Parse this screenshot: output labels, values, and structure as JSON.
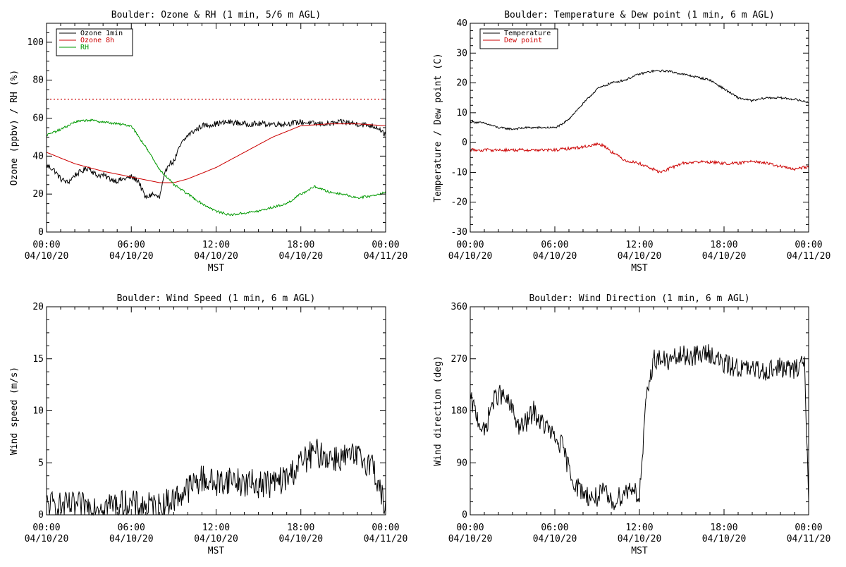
{
  "chart_data": [
    {
      "type": "line",
      "title": "Boulder: Ozone & RH (1 min, 5/6 m AGL)",
      "xlabel": "MST",
      "ylabel": "Ozone (ppbv) / RH (%)",
      "xlim": [
        0,
        24
      ],
      "ylim": [
        0,
        110
      ],
      "x_ticks": [
        {
          "x": 0,
          "time": "00:00",
          "date": "04/10/20"
        },
        {
          "x": 6,
          "time": "06:00",
          "date": "04/10/20"
        },
        {
          "x": 12,
          "time": "12:00",
          "date": "04/10/20"
        },
        {
          "x": 18,
          "time": "18:00",
          "date": "04/10/20"
        },
        {
          "x": 24,
          "time": "00:00",
          "date": "04/11/20"
        }
      ],
      "y_ticks": [
        0,
        20,
        40,
        60,
        80,
        100
      ],
      "legend_position": "top-left",
      "reference_lines": [
        {
          "y": 70,
          "color": "#cc0000",
          "style": "dotted"
        }
      ],
      "series": [
        {
          "name": "Ozone 1min",
          "color": "#000000",
          "noise": 1.5,
          "x": [
            0,
            0.5,
            1,
            1.5,
            2,
            2.5,
            3,
            3.5,
            4,
            4.5,
            5,
            5.5,
            6,
            6.5,
            7,
            7.5,
            8,
            8.3,
            8.6,
            9,
            9.5,
            10,
            11,
            12,
            13,
            14,
            15,
            16,
            17,
            18,
            19,
            20,
            21,
            22,
            23,
            23.5,
            24
          ],
          "y": [
            35,
            33,
            28,
            26,
            30,
            32,
            34,
            30,
            30,
            28,
            27,
            28,
            29,
            27,
            18,
            20,
            18,
            28,
            36,
            37,
            46,
            51,
            56,
            57,
            58,
            57,
            57,
            57,
            57,
            58,
            57,
            57,
            58,
            57,
            56,
            55,
            51
          ]
        },
        {
          "name": "Ozone 8h",
          "color": "#cc0000",
          "noise": 0,
          "x": [
            0,
            2,
            4,
            6,
            8,
            9,
            10,
            12,
            14,
            16,
            18,
            20,
            22,
            24
          ],
          "y": [
            42,
            36,
            32,
            29,
            26,
            26,
            28,
            34,
            42,
            50,
            56,
            57,
            57,
            56
          ]
        },
        {
          "name": "RH",
          "color": "#009900",
          "noise": 0.6,
          "x": [
            0,
            1,
            2,
            3,
            4,
            5,
            6,
            7,
            8,
            9,
            10,
            11,
            12,
            13,
            14,
            15,
            16,
            17,
            18,
            19,
            20,
            21,
            22,
            23,
            24
          ],
          "y": [
            51,
            54,
            58,
            59,
            58,
            57,
            56,
            45,
            33,
            25,
            20,
            15,
            11,
            9,
            10,
            11,
            13,
            15,
            20,
            24,
            21,
            20,
            18,
            19,
            21
          ]
        }
      ]
    },
    {
      "type": "line",
      "title": "Boulder: Temperature & Dew point (1 min, 6 m AGL)",
      "xlabel": "MST",
      "ylabel": "Temperature / Dew point (C)",
      "xlim": [
        0,
        24
      ],
      "ylim": [
        -30,
        40
      ],
      "x_ticks": [
        {
          "x": 0,
          "time": "00:00",
          "date": "04/10/20"
        },
        {
          "x": 6,
          "time": "06:00",
          "date": "04/10/20"
        },
        {
          "x": 12,
          "time": "12:00",
          "date": "04/10/20"
        },
        {
          "x": 18,
          "time": "18:00",
          "date": "04/10/20"
        },
        {
          "x": 24,
          "time": "00:00",
          "date": "04/11/20"
        }
      ],
      "y_ticks": [
        -30,
        -20,
        -10,
        0,
        10,
        20,
        30,
        40
      ],
      "legend_position": "top-left",
      "series": [
        {
          "name": "Temperature",
          "color": "#000000",
          "noise": 0.35,
          "x": [
            0,
            1,
            2,
            3,
            4,
            5,
            6,
            6.5,
            7,
            8,
            9,
            10,
            11,
            12,
            13,
            14,
            15,
            16,
            17,
            18,
            19,
            20,
            21,
            22,
            23,
            24
          ],
          "y": [
            7,
            6.5,
            5,
            4.5,
            5,
            5,
            5,
            6,
            8,
            13,
            18,
            20,
            21,
            23,
            24,
            24,
            23,
            22,
            21,
            18,
            15,
            14,
            15,
            15,
            14.5,
            13.5
          ]
        },
        {
          "name": "Dew point",
          "color": "#cc0000",
          "noise": 0.5,
          "x": [
            0,
            2,
            4,
            6,
            7,
            8,
            9,
            9.5,
            10,
            11,
            12,
            13,
            13.5,
            14,
            15,
            16,
            17,
            18,
            19,
            20,
            21,
            22,
            23,
            24
          ],
          "y": [
            -2.5,
            -2.5,
            -2.5,
            -2.5,
            -2,
            -1.5,
            -0.5,
            -1,
            -3,
            -6,
            -7,
            -9,
            -10,
            -9,
            -7,
            -6.5,
            -6.5,
            -7,
            -7,
            -6,
            -7,
            -8,
            -9,
            -8
          ]
        }
      ]
    },
    {
      "type": "line",
      "title": "Boulder: Wind Speed (1 min, 6 m AGL)",
      "xlabel": "MST",
      "ylabel": "Wind speed (m/s)",
      "xlim": [
        0,
        24
      ],
      "ylim": [
        0,
        20
      ],
      "x_ticks": [
        {
          "x": 0,
          "time": "00:00",
          "date": "04/10/20"
        },
        {
          "x": 6,
          "time": "06:00",
          "date": "04/10/20"
        },
        {
          "x": 12,
          "time": "12:00",
          "date": "04/10/20"
        },
        {
          "x": 18,
          "time": "18:00",
          "date": "04/10/20"
        },
        {
          "x": 24,
          "time": "00:00",
          "date": "04/11/20"
        }
      ],
      "y_ticks": [
        0,
        5,
        10,
        15,
        20
      ],
      "legend_position": "none",
      "series": [
        {
          "name": "",
          "color": "#000000",
          "noise": 1.4,
          "x": [
            0,
            1,
            2,
            3,
            4,
            5,
            6,
            7,
            8,
            9,
            10,
            11,
            12,
            13,
            14,
            15,
            16,
            17,
            18,
            19,
            20,
            21,
            22,
            23,
            23.5,
            24
          ],
          "y": [
            1,
            0.8,
            0.8,
            0.8,
            1,
            1,
            1,
            0.8,
            0.8,
            1.5,
            2.5,
            3.5,
            3,
            3.5,
            3,
            3,
            3,
            3.5,
            5,
            6,
            5.5,
            5.5,
            5.5,
            5,
            3,
            0.3
          ]
        }
      ]
    },
    {
      "type": "line",
      "title": "Boulder: Wind Direction (1 min, 6 m AGL)",
      "xlabel": "MST",
      "ylabel": "Wind direction (deg)",
      "xlim": [
        0,
        24
      ],
      "ylim": [
        0,
        360
      ],
      "x_ticks": [
        {
          "x": 0,
          "time": "00:00",
          "date": "04/10/20"
        },
        {
          "x": 6,
          "time": "06:00",
          "date": "04/10/20"
        },
        {
          "x": 12,
          "time": "12:00",
          "date": "04/10/20"
        },
        {
          "x": 18,
          "time": "18:00",
          "date": "04/10/20"
        },
        {
          "x": 24,
          "time": "00:00",
          "date": "04/11/20"
        }
      ],
      "y_ticks": [
        0,
        90,
        180,
        270,
        360
      ],
      "legend_position": "none",
      "series": [
        {
          "name": "",
          "color": "#000000",
          "noise": 18,
          "x": [
            0,
            0.5,
            1,
            1.5,
            2,
            2.5,
            3,
            3.5,
            4,
            4.5,
            5,
            5.5,
            6,
            6.5,
            7,
            7.5,
            8,
            8.5,
            9,
            9.5,
            10,
            10.5,
            11,
            11.5,
            12,
            12.5,
            13,
            13.5,
            14,
            15,
            16,
            17,
            18,
            19,
            20,
            21,
            22,
            23,
            23.7,
            24
          ],
          "y": [
            200,
            170,
            140,
            190,
            210,
            200,
            180,
            150,
            160,
            180,
            160,
            150,
            130,
            120,
            80,
            50,
            40,
            30,
            30,
            40,
            20,
            30,
            40,
            50,
            30,
            200,
            270,
            270,
            265,
            275,
            275,
            280,
            260,
            255,
            250,
            250,
            255,
            250,
            270,
            20
          ]
        }
      ]
    }
  ]
}
